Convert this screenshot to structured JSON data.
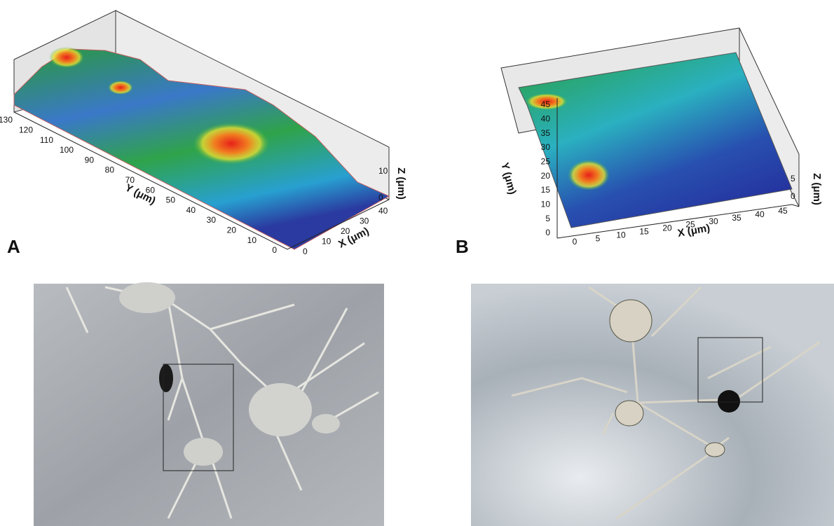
{
  "panels": [
    {
      "label": "A",
      "y_axis": {
        "title": "Y (μm)",
        "ticks": [
          130,
          120,
          110,
          100,
          90,
          80,
          70,
          60,
          50,
          40,
          30,
          20,
          10,
          0
        ]
      },
      "x_axis": {
        "title": "X (μm)",
        "ticks": [
          0,
          10,
          20,
          30,
          40
        ]
      },
      "z_axis": {
        "title": "Z (μm)",
        "ticks": [
          0,
          10
        ]
      }
    },
    {
      "label": "B",
      "y_axis": {
        "title": "Y (μm)",
        "ticks": [
          0,
          5,
          10,
          15,
          20,
          25,
          30,
          35,
          40,
          45
        ]
      },
      "x_axis": {
        "title": "X (μm)",
        "ticks": [
          0,
          5,
          10,
          15,
          20,
          25,
          30,
          35,
          40,
          45
        ]
      },
      "z_axis": {
        "title": "Z (μm)",
        "ticks": [
          0,
          5
        ]
      }
    }
  ]
}
